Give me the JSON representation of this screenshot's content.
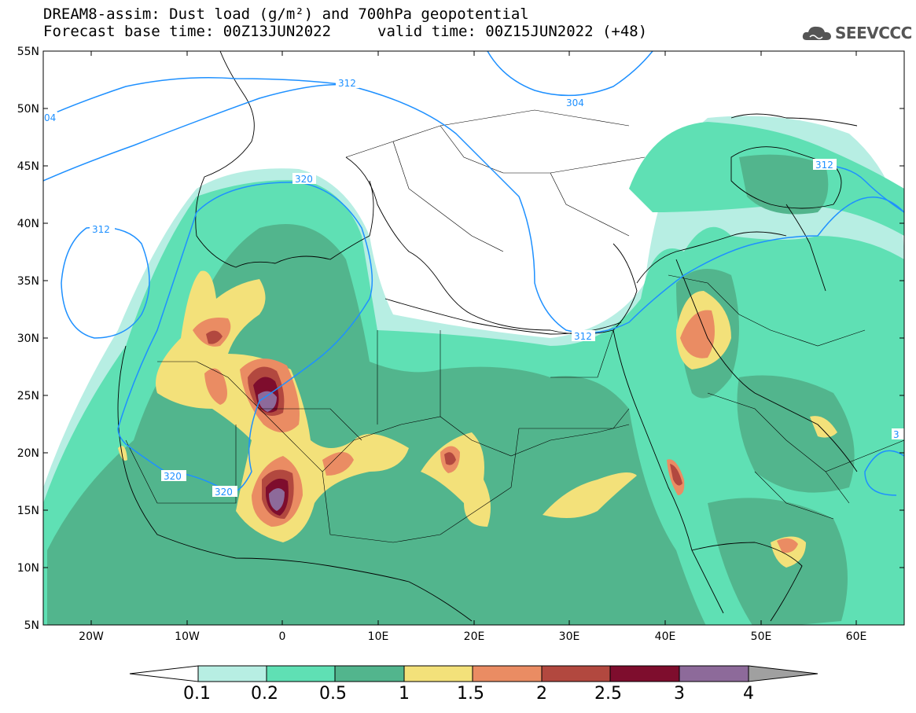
{
  "header": {
    "title_line1": "DREAM8-assim: Dust load (g/m²) and 700hPa geopotential",
    "title_line2": "Forecast base time: 00Z13JUN2022",
    "valid_time": "valid time: 00Z15JUN2022 (+48)",
    "logo_text": "SEEVCCC",
    "logo_icon": "cloud-logo-icon"
  },
  "axes": {
    "lat_labels": [
      "55N",
      "50N",
      "45N",
      "40N",
      "35N",
      "30N",
      "25N",
      "20N",
      "15N",
      "10N",
      "5N"
    ],
    "lon_labels": [
      "20W",
      "10W",
      "0",
      "10E",
      "20E",
      "30E",
      "40E",
      "50E",
      "60E"
    ]
  },
  "contours": {
    "labels": [
      "312",
      "320",
      "320",
      "320",
      "312",
      "304",
      "312",
      "312",
      "04",
      "3"
    ]
  },
  "colorbar": {
    "levels": [
      "0.1",
      "0.2",
      "0.5",
      "1",
      "1.5",
      "2",
      "2.5",
      "3",
      "4"
    ],
    "colors": [
      "#b7eee3",
      "#5fe0b4",
      "#52b58d",
      "#f3e17a",
      "#ea8c63",
      "#b2483f",
      "#7e0d2d",
      "#8d6a9a",
      "#a0a0a0"
    ]
  },
  "colors": {
    "contour": "#1e90ff",
    "border": "#000000"
  }
}
